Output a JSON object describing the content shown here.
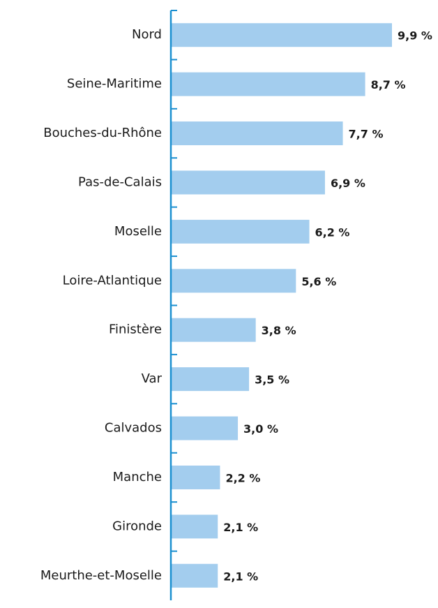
{
  "chart_data": {
    "type": "bar",
    "orientation": "horizontal",
    "categories": [
      "Nord",
      "Seine-Maritime",
      "Bouches-du-Rhône",
      "Pas-de-Calais",
      "Moselle",
      "Loire-Atlantique",
      "Finistère",
      "Var",
      "Calvados",
      "Manche",
      "Gironde",
      "Meurthe-et-Moselle"
    ],
    "values": [
      9.9,
      8.7,
      7.7,
      6.9,
      6.2,
      5.6,
      3.8,
      3.5,
      3.0,
      2.2,
      2.1,
      2.1
    ],
    "value_labels": [
      "9,9 %",
      "8,7 %",
      "7,7 %",
      "6,9 %",
      "6,2 %",
      "5,6 %",
      "3,8 %",
      "3,5 %",
      "3,0 %",
      "2,2 %",
      "2,1 %",
      "2,1 %"
    ],
    "color": "#a3cdee",
    "axis_color": "#1a8fd0"
  }
}
